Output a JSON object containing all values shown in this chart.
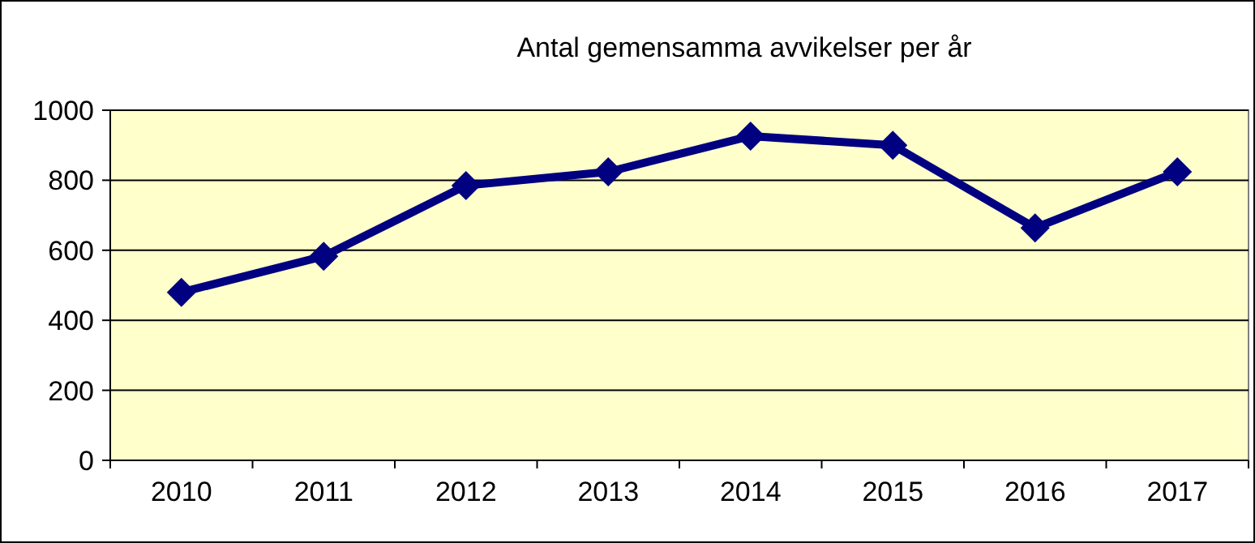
{
  "chart_data": {
    "type": "line",
    "title": "Antal gemensamma  avvikelser per år",
    "categories": [
      "2010",
      "2011",
      "2012",
      "2013",
      "2014",
      "2015",
      "2016",
      "2017"
    ],
    "series": [
      {
        "color": "#000080",
        "values": [
          480,
          583,
          785,
          824,
          926,
          900,
          664,
          824
        ]
      }
    ],
    "ylim": [
      0,
      1000
    ],
    "yticks": [
      0,
      200,
      400,
      600,
      800,
      1000
    ],
    "grid": "y",
    "marker": "diamond",
    "line_style": "solid"
  }
}
